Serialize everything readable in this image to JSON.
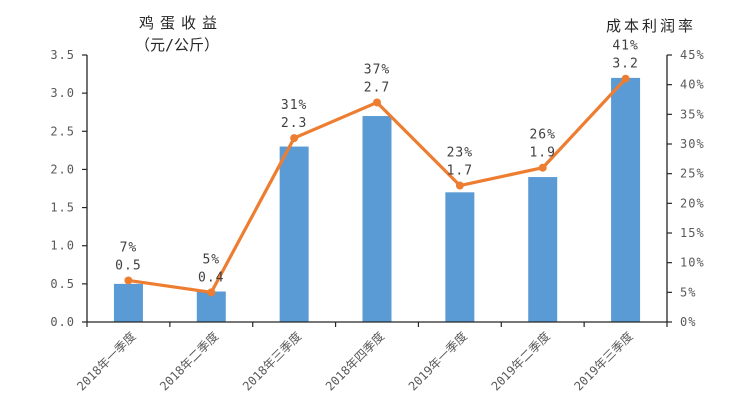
{
  "chart_data": {
    "type": "bar+line",
    "title_left_line1": "鸡蛋收益",
    "title_left_line2": "（元/公斤）",
    "title_right": "成本利润率",
    "categories": [
      "2018年一季度",
      "2018年二季度",
      "2018年三季度",
      "2018年四季度",
      "2019年一季度",
      "2019年二季度",
      "2019年三季度"
    ],
    "series": [
      {
        "name": "鸡蛋收益",
        "chart": "bar",
        "axis": "left",
        "values": [
          0.5,
          0.4,
          2.3,
          2.7,
          1.7,
          1.9,
          3.2
        ],
        "labels": [
          "0.5",
          "0.4",
          "2.3",
          "2.7",
          "1.7",
          "1.9",
          "3.2"
        ],
        "color": "#5B9BD5"
      },
      {
        "name": "成本利润率",
        "chart": "line",
        "axis": "right",
        "values": [
          7,
          5,
          31,
          37,
          23,
          26,
          41
        ],
        "labels": [
          "7%",
          "5%",
          "31%",
          "37%",
          "23%",
          "26%",
          "41%"
        ],
        "color": "#ED7D31"
      }
    ],
    "left_axis": {
      "min": 0,
      "max": 3.5,
      "step": 0.5,
      "tick_labels": [
        "0.0",
        "0.5",
        "1.0",
        "1.5",
        "2.0",
        "2.5",
        "3.0",
        "3.5"
      ]
    },
    "right_axis": {
      "min": 0,
      "max": 45,
      "step": 5,
      "tick_labels": [
        "0%",
        "5%",
        "10%",
        "15%",
        "20%",
        "25%",
        "30%",
        "35%",
        "40%",
        "45%"
      ]
    },
    "legend_position": "none",
    "grid": false,
    "colors": {
      "bar": "#5B9BD5",
      "line": "#ED7D31",
      "axis": "#262626",
      "tick_text": "#595959",
      "label_text": "#404040",
      "background": "#FFFFFF"
    }
  }
}
